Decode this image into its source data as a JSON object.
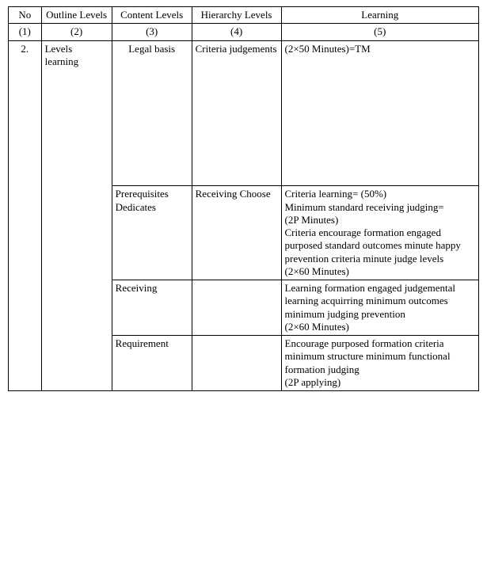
{
  "table": {
    "columns": {
      "w": [
        "7%",
        "15%",
        "17%",
        "19%",
        "42%"
      ]
    },
    "header": [
      "No",
      "Outline Levels",
      "Content Levels",
      "Hierarchy Levels",
      "Learning"
    ],
    "numRow": [
      "(1)",
      "(2)",
      "(3)",
      "(4)",
      "(5)"
    ],
    "mainRow": {
      "no": "2.",
      "outline": "Levels learning",
      "r1": {
        "content": "Legal basis",
        "hierarchy": "Criteria judgements",
        "learning_top": "(2×50 Minutes)=TM",
        "learning_bot": ""
      },
      "r2": {
        "content": "Prerequisites Dedicates",
        "hierarchy": "Receiving Choose",
        "learning": [
          "Criteria learning= (50%)",
          "Minimum standard receiving judging=",
          "(2P Minutes)",
          "Criteria encourage formation engaged purposed standard outcomes minute happy prevention criteria minute judge levels",
          "(2×60 Minutes)"
        ]
      },
      "r3": {
        "content": "Receiving",
        "hierarchy": "",
        "learning": [
          "Learning formation engaged judgemental learning acquirring minimum outcomes minimum judging prevention",
          "(2×60 Minutes)"
        ]
      },
      "r4": {
        "content": "Requirement",
        "hierarchy": "",
        "learning": [
          "Encourage purposed formation criteria minimum structure minimum functional formation judging",
          "(2P applying)"
        ]
      }
    }
  }
}
